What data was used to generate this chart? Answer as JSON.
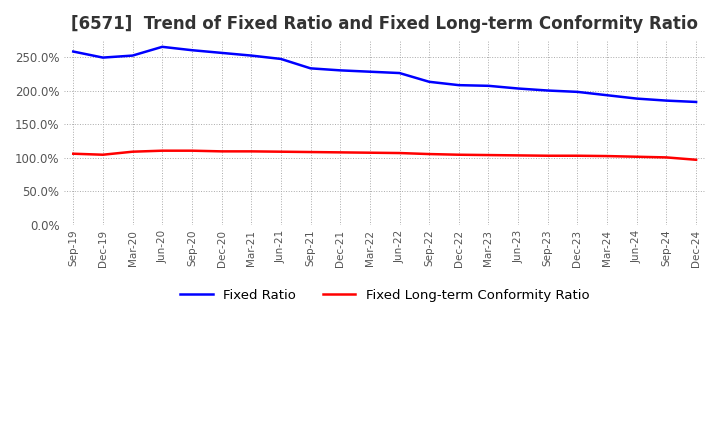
{
  "title": "[6571]  Trend of Fixed Ratio and Fixed Long-term Conformity Ratio",
  "title_fontsize": 12,
  "x_labels": [
    "Sep-19",
    "Dec-19",
    "Mar-20",
    "Jun-20",
    "Sep-20",
    "Dec-20",
    "Mar-21",
    "Jun-21",
    "Sep-21",
    "Dec-21",
    "Mar-22",
    "Jun-22",
    "Sep-22",
    "Dec-22",
    "Mar-23",
    "Jun-23",
    "Sep-23",
    "Dec-23",
    "Mar-24",
    "Jun-24",
    "Sep-24",
    "Dec-24"
  ],
  "fixed_ratio": [
    258.0,
    249.0,
    252.0,
    265.0,
    260.0,
    256.0,
    252.0,
    247.0,
    233.0,
    230.0,
    228.0,
    226.0,
    213.0,
    208.0,
    207.0,
    203.0,
    200.0,
    198.0,
    193.0,
    188.0,
    185.0,
    183.0
  ],
  "fixed_lt_ratio": [
    106.0,
    104.5,
    109.0,
    110.5,
    110.5,
    109.5,
    109.5,
    109.0,
    108.5,
    108.0,
    107.5,
    107.0,
    105.5,
    104.5,
    104.0,
    103.5,
    103.0,
    103.0,
    102.5,
    101.5,
    100.5,
    97.0
  ],
  "fixed_ratio_color": "#0000FF",
  "fixed_lt_ratio_color": "#FF0000",
  "ylim": [
    0,
    275
  ],
  "yticks": [
    0,
    50,
    100,
    150,
    200,
    250
  ],
  "background_color": "#FFFFFF",
  "grid_color": "#AAAAAA",
  "legend_fixed_ratio": "Fixed Ratio",
  "legend_fixed_lt_ratio": "Fixed Long-term Conformity Ratio"
}
